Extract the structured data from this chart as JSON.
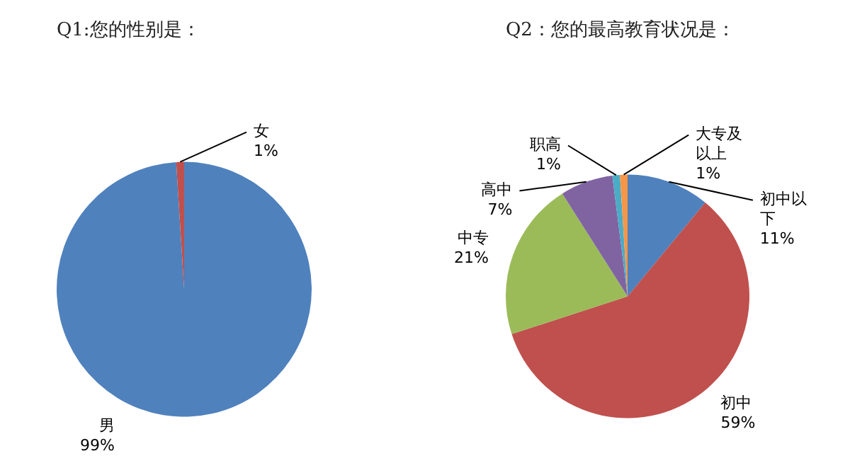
{
  "chart_data": [
    {
      "type": "pie",
      "title": "Q1:您的性别是：",
      "categories": [
        "男",
        "女"
      ],
      "values": [
        99,
        1
      ],
      "colors": [
        "#4f81bd",
        "#c0504d"
      ],
      "value_labels": [
        "99%",
        "1%"
      ]
    },
    {
      "type": "pie",
      "title": "Q2：您的最高教育状况是：",
      "categories": [
        "初中以下",
        "初中",
        "中专",
        "高中",
        "职高",
        "大专及以上"
      ],
      "values": [
        11,
        59,
        21,
        7,
        1,
        1
      ],
      "colors": [
        "#4f81bd",
        "#c0504d",
        "#9bbb59",
        "#8064a2",
        "#4bacc6",
        "#f79646"
      ],
      "value_labels": [
        "11%",
        "59%",
        "21%",
        "7%",
        "1%",
        "1%"
      ]
    }
  ]
}
